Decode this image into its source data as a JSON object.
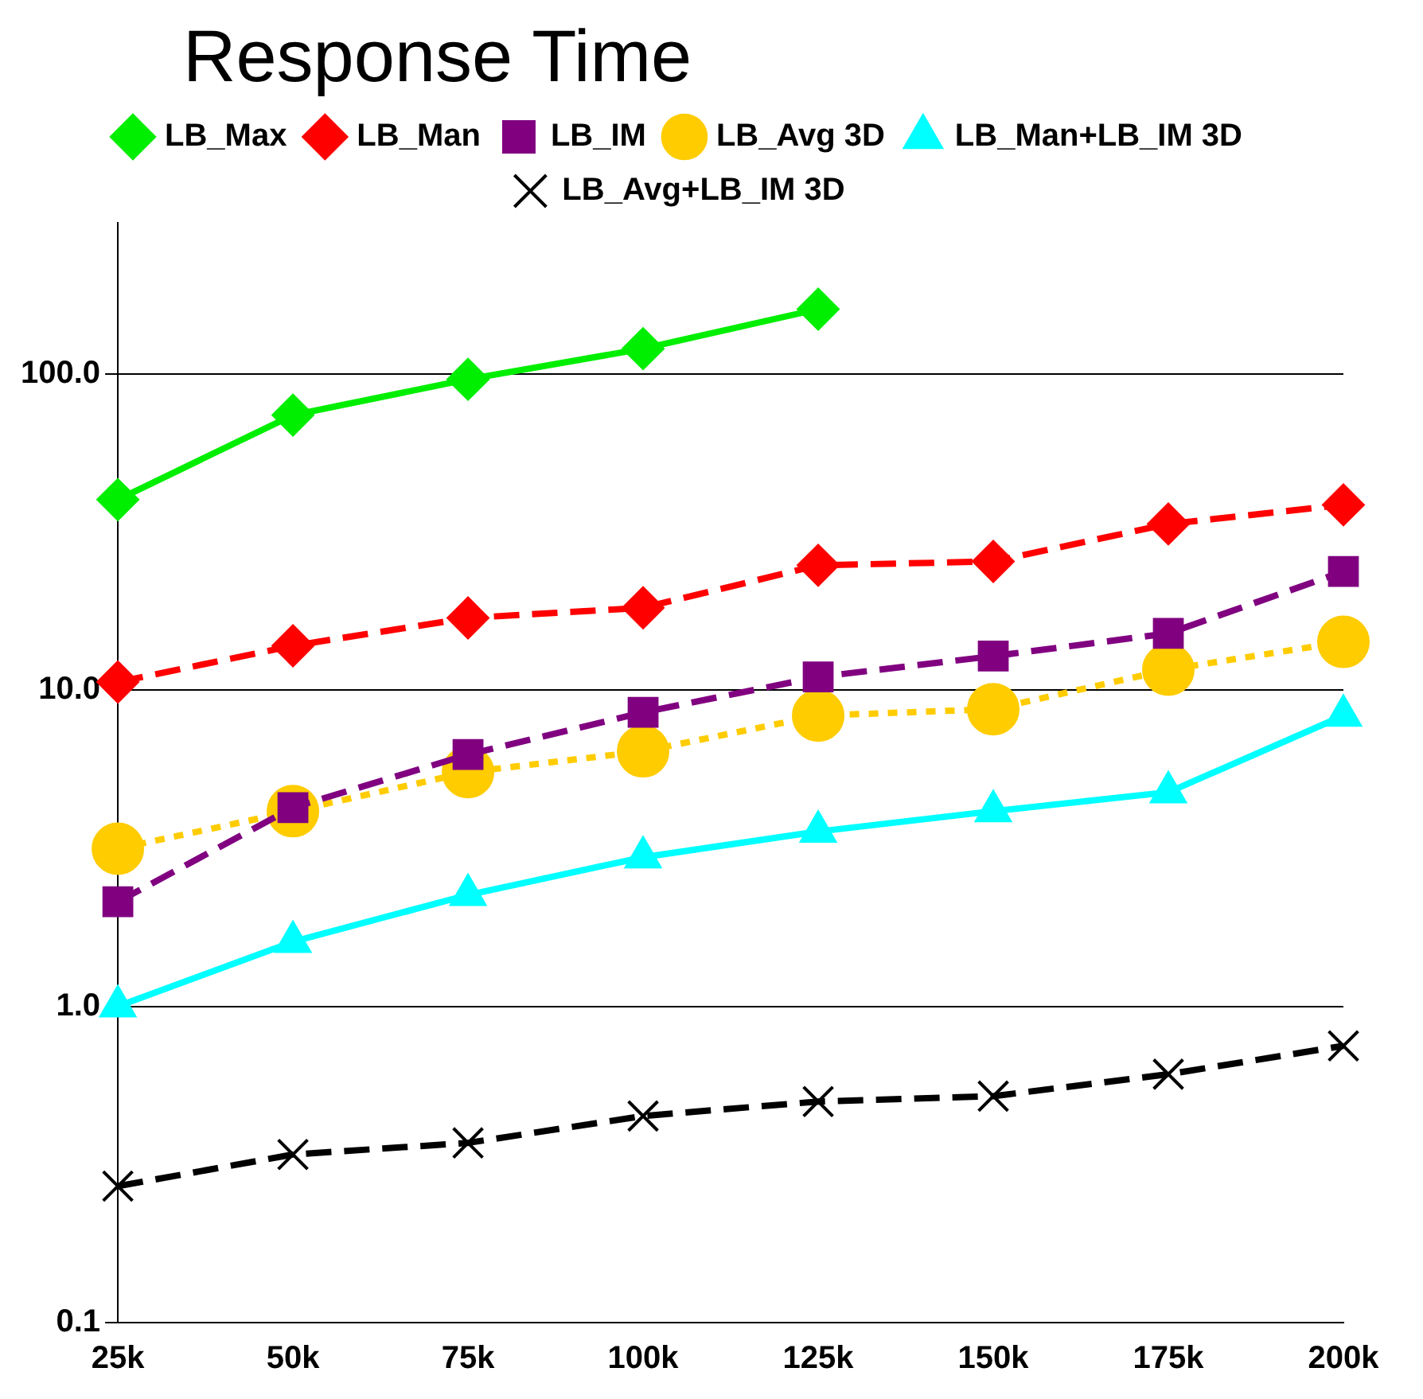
{
  "chart_data": {
    "type": "line",
    "title": "Response Time",
    "categories": [
      "25k",
      "50k",
      "75k",
      "100k",
      "125k",
      "150k",
      "175k",
      "200k"
    ],
    "series": [
      {
        "name": "LB_Max",
        "color": "#00ee00",
        "marker": "diamond",
        "line_style": "solid",
        "values": [
          40,
          74,
          96,
          120,
          160,
          null,
          null,
          null
        ]
      },
      {
        "name": "LB_Man",
        "color": "#ff0000",
        "marker": "diamond",
        "line_style": "dashed",
        "values": [
          10.6,
          13.8,
          16.9,
          18.2,
          24.8,
          25.5,
          33.5,
          38.5
        ]
      },
      {
        "name": "LB_IM",
        "color": "#800080",
        "marker": "square",
        "line_style": "dashed",
        "values": [
          2.14,
          4.25,
          6.25,
          8.5,
          11.0,
          12.8,
          15.1,
          23.7
        ]
      },
      {
        "name": "LB_Avg 3D",
        "color": "#ffcc00",
        "marker": "circle",
        "line_style": "dotted",
        "values": [
          3.15,
          4.14,
          5.5,
          6.4,
          8.3,
          8.7,
          11.6,
          14.2
        ]
      },
      {
        "name": "LB_Man+LB_IM 3D",
        "color": "#00ffff",
        "marker": "triangle",
        "line_style": "solid",
        "values": [
          1.0,
          1.6,
          2.25,
          2.96,
          3.57,
          4.14,
          4.75,
          8.3
        ]
      },
      {
        "name": "LB_Avg+LB_IM 3D",
        "color": "#000000",
        "marker": "cross",
        "line_style": "dashed",
        "values": [
          0.27,
          0.34,
          0.37,
          0.45,
          0.5,
          0.52,
          0.61,
          0.75
        ]
      }
    ],
    "log": "y",
    "ylim": [
      0.1,
      300
    ],
    "yticks": [
      {
        "value": 0.1,
        "label": "0.1"
      },
      {
        "value": 1,
        "label": "1.0"
      },
      {
        "value": 10,
        "label": "10.0"
      },
      {
        "value": 100,
        "label": "100.0"
      }
    ],
    "grid": "y",
    "legend": "top"
  }
}
